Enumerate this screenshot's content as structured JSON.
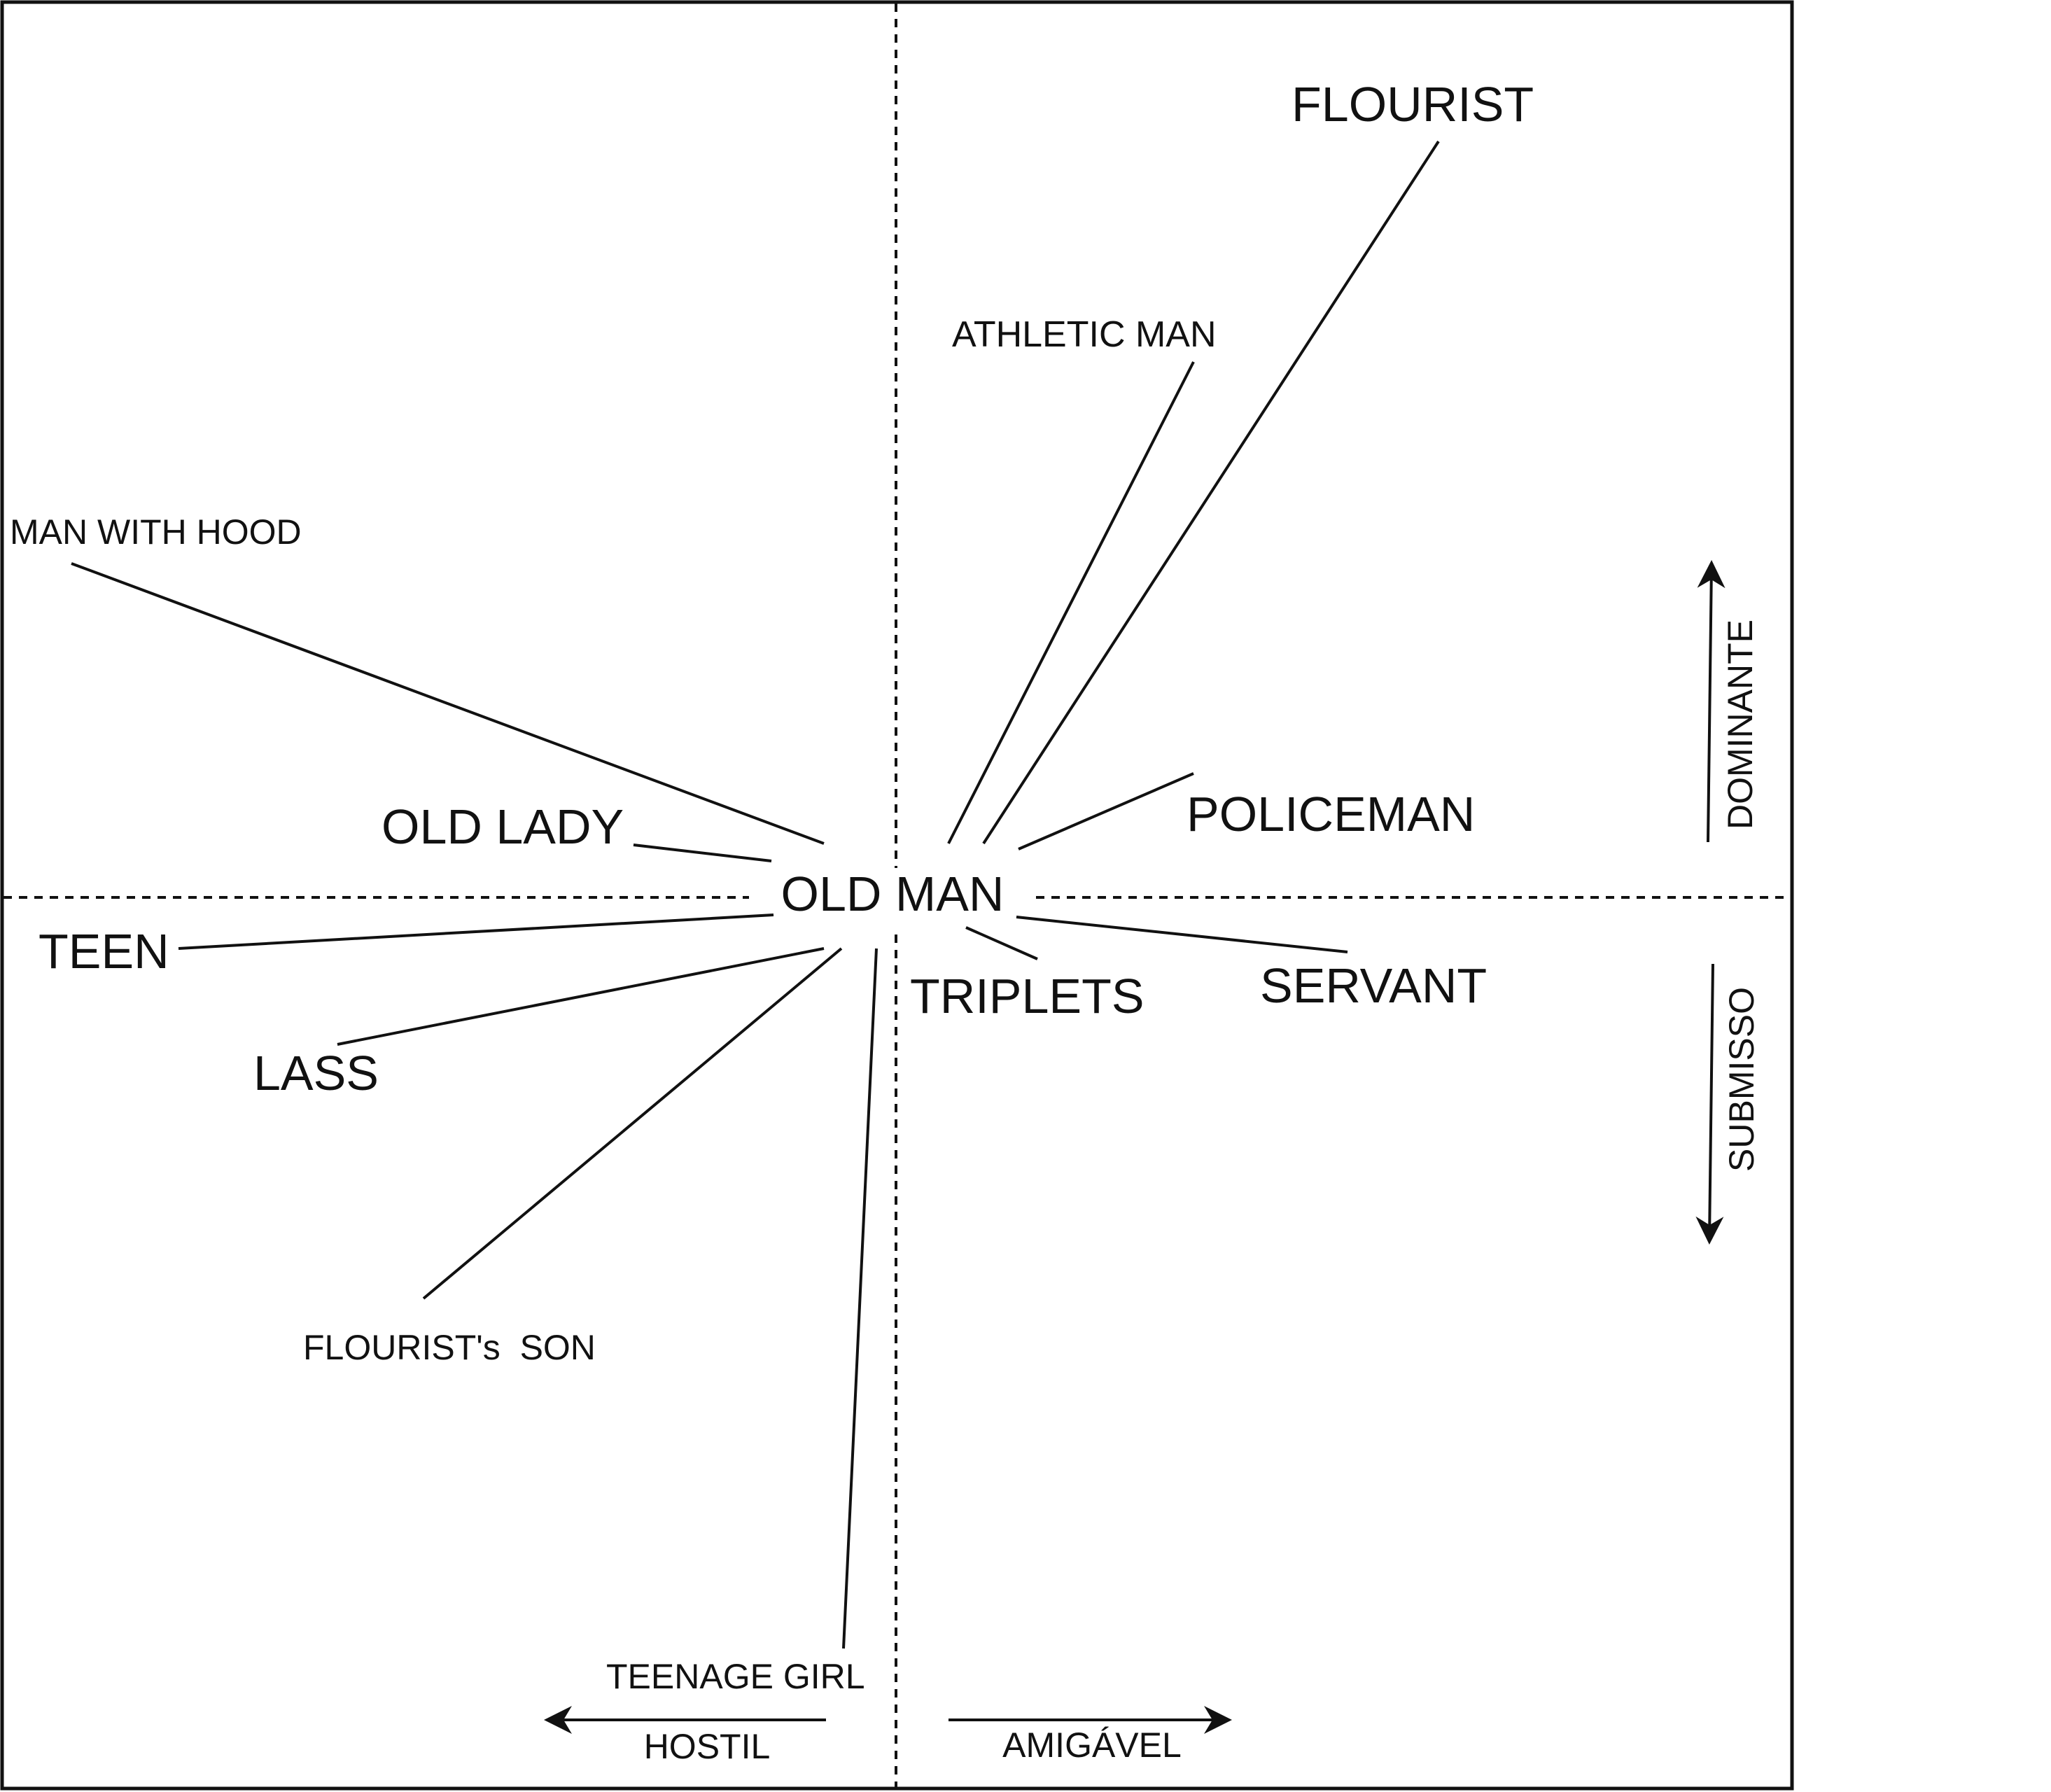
{
  "center": {
    "label": "OLD MAN"
  },
  "characters": [
    {
      "id": "flourist",
      "label": "FLOURIST"
    },
    {
      "id": "athletic-man",
      "label": "ATHLETIC MAN"
    },
    {
      "id": "man-with-hood",
      "label": "MAN WITH HOOD"
    },
    {
      "id": "policeman",
      "label": "POLICEMAN"
    },
    {
      "id": "old-lady",
      "label": "OLD LADY"
    },
    {
      "id": "teen",
      "label": "TEEN"
    },
    {
      "id": "triplets",
      "label": "TRIPLETS"
    },
    {
      "id": "servant",
      "label": "SERVANT"
    },
    {
      "id": "lass",
      "label": "LASS"
    },
    {
      "id": "flourists-son",
      "label": "FLOURIST's  SON"
    },
    {
      "id": "teenage-girl",
      "label": "TEENAGE GIRL"
    }
  ],
  "axes": {
    "up": "DOMINANTE",
    "down": "SUBMISSO",
    "left": "HOSTIL",
    "right": "AMIGÁVEL"
  }
}
